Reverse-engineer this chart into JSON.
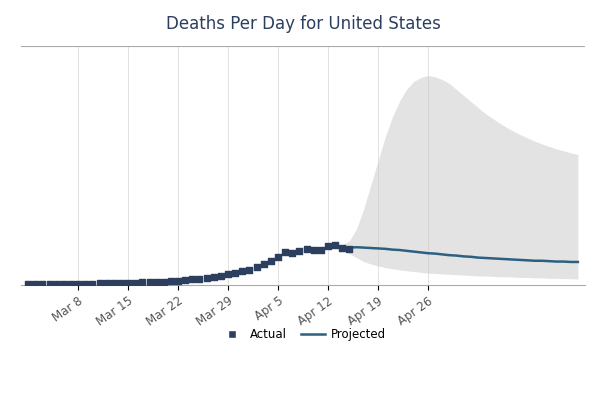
{
  "title": "Deaths Per Day for United States",
  "actual_color": "#2d3f5e",
  "projected_color": "#2d6080",
  "band_color": "#cccccc",
  "grid_color": "#dddddd",
  "actual_x": [
    0,
    1,
    2,
    3,
    4,
    5,
    6,
    7,
    8,
    9,
    10,
    11,
    12,
    13,
    14,
    15,
    16,
    17,
    18,
    19,
    20,
    21,
    22,
    23,
    24,
    25,
    26,
    27,
    28,
    29,
    30,
    31,
    32,
    33,
    34,
    35,
    36,
    37,
    38,
    39,
    40,
    41,
    42,
    43,
    44,
    45
  ],
  "actual_y": [
    2,
    2,
    2,
    2,
    2,
    2,
    2,
    2,
    2,
    2,
    3,
    3,
    4,
    5,
    5,
    5,
    6,
    7,
    7,
    7,
    8,
    9,
    11,
    14,
    15,
    17,
    19,
    23,
    27,
    30,
    34,
    38,
    44,
    52,
    60,
    70,
    82,
    79,
    85,
    90,
    86,
    88,
    96,
    100,
    93,
    90
  ],
  "projected_x": [
    43,
    44,
    45,
    46,
    47,
    48,
    49,
    50,
    51,
    52,
    53,
    54,
    55,
    56,
    57,
    58,
    59,
    60,
    61,
    62,
    63,
    64,
    65,
    66,
    67,
    68,
    69,
    70,
    71,
    72,
    73,
    74,
    75,
    76,
    77
  ],
  "projected_y": [
    96,
    95,
    93,
    94,
    93,
    92,
    91,
    90,
    88,
    87,
    85,
    83,
    81,
    79,
    78,
    76,
    74,
    73,
    71,
    70,
    68,
    67,
    66,
    65,
    64,
    63,
    62,
    61,
    60,
    60,
    59,
    58,
    58,
    57,
    57
  ],
  "band_upper_x": [
    43,
    44,
    45,
    46,
    47,
    48,
    49,
    50,
    51,
    52,
    53,
    54,
    55,
    56,
    57,
    58,
    59,
    60,
    61,
    62,
    63,
    64,
    65,
    66,
    67,
    68,
    69,
    70,
    71,
    72,
    73,
    74,
    75,
    76,
    77
  ],
  "band_upper": [
    98,
    100,
    110,
    140,
    190,
    250,
    310,
    370,
    420,
    460,
    490,
    510,
    520,
    525,
    522,
    515,
    505,
    490,
    475,
    460,
    445,
    430,
    418,
    406,
    395,
    385,
    376,
    368,
    360,
    353,
    347,
    341,
    336,
    331,
    327
  ],
  "band_lower": [
    94,
    90,
    78,
    68,
    58,
    52,
    47,
    43,
    40,
    37,
    35,
    33,
    31,
    29,
    28,
    27,
    26,
    25,
    24,
    23,
    22,
    22,
    21,
    20,
    20,
    19,
    18,
    18,
    17,
    17,
    16,
    16,
    15,
    15,
    14
  ],
  "xtick_positions": [
    7,
    14,
    21,
    28,
    35,
    42,
    49,
    56,
    63,
    70
  ],
  "xtick_labels": [
    "Mar 8",
    "Mar 15",
    "Mar 22",
    "Mar 29",
    "Apr 5",
    "Apr 12",
    "Apr 19",
    "Apr 26",
    "",
    ""
  ],
  "ylim": [
    0,
    600
  ],
  "xlim": [
    -1,
    78
  ],
  "legend_actual_label": "Actual",
  "legend_projected_label": "Projected"
}
